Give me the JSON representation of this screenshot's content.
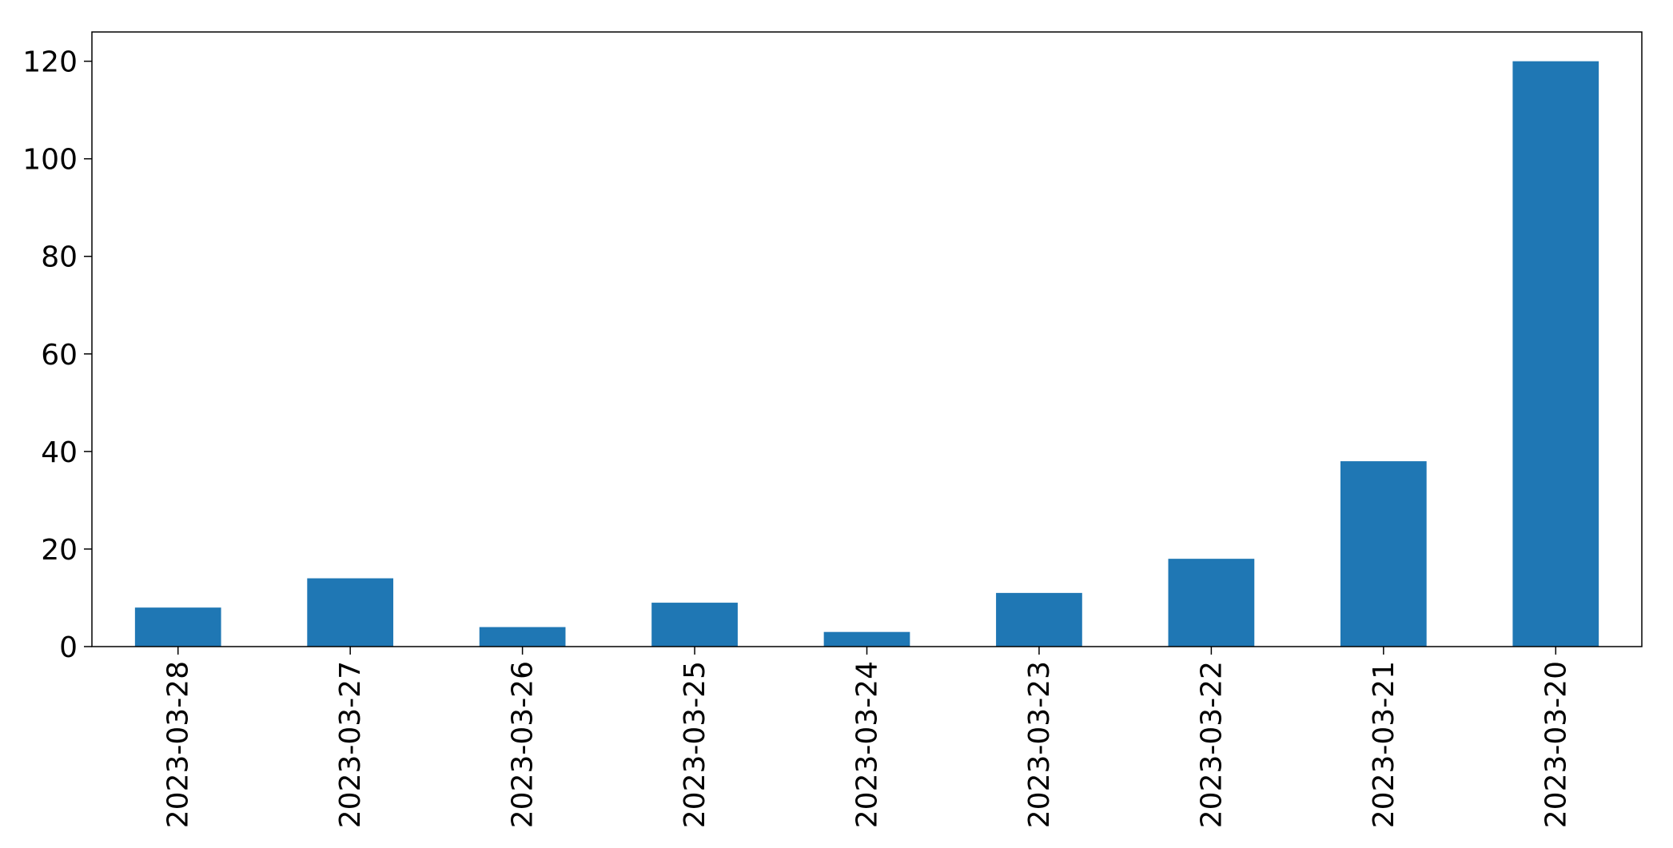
{
  "chart_data": {
    "type": "bar",
    "title": "",
    "xlabel": "",
    "ylabel": "",
    "categories": [
      "2023-03-28",
      "2023-03-27",
      "2023-03-26",
      "2023-03-25",
      "2023-03-24",
      "2023-03-23",
      "2023-03-22",
      "2023-03-21",
      "2023-03-20"
    ],
    "values": [
      8,
      14,
      4,
      9,
      3,
      11,
      18,
      38,
      120
    ],
    "ylim": [
      0,
      126
    ],
    "yticks": [
      0,
      20,
      40,
      60,
      80,
      100,
      120
    ],
    "grid": false,
    "legend": "none",
    "colors": {
      "bar": "#1f77b4"
    }
  }
}
